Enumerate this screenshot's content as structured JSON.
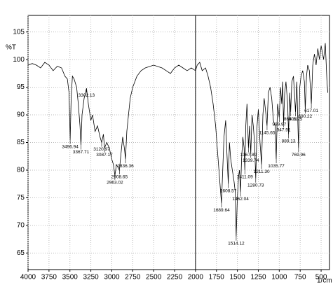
{
  "chart_data": {
    "type": "line",
    "y_label": "%T",
    "x_label": "1/cm",
    "xlim": [
      4000,
      400
    ],
    "ylim": [
      62,
      108
    ],
    "xticks": [
      4000,
      3750,
      3500,
      3250,
      3000,
      2750,
      2500,
      2250,
      2000,
      1750,
      1500,
      1250,
      1000,
      750,
      500
    ],
    "yticks": [
      65,
      70,
      75,
      80,
      85,
      90,
      95,
      100,
      105
    ],
    "grid": true,
    "series": [
      {
        "color": "#000000",
        "x": [
          4000,
          3950,
          3900,
          3850,
          3800,
          3750,
          3700,
          3650,
          3600,
          3560,
          3530,
          3510,
          3497,
          3485,
          3470,
          3450,
          3420,
          3400,
          3380,
          3368,
          3355,
          3330,
          3302,
          3280,
          3250,
          3230,
          3200,
          3170,
          3140,
          3121,
          3100,
          3087,
          3060,
          3030,
          3000,
          2980,
          2963,
          2945,
          2925,
          2909,
          2890,
          2870,
          2850,
          2836,
          2820,
          2800,
          2780,
          2750,
          2700,
          2650,
          2600,
          2500,
          2400,
          2350,
          2300,
          2250,
          2200,
          2150,
          2100,
          2050,
          2000,
          1980,
          1950,
          1920,
          1880,
          1850,
          1820,
          1790,
          1760,
          1740,
          1720,
          1700,
          1690,
          1675,
          1660,
          1640,
          1625,
          1609,
          1595,
          1580,
          1560,
          1540,
          1525,
          1514,
          1500,
          1485,
          1475,
          1462,
          1450,
          1435,
          1420,
          1411,
          1400,
          1385,
          1368,
          1355,
          1340,
          1325,
          1310,
          1295,
          1281,
          1265,
          1250,
          1230,
          1211,
          1195,
          1180,
          1165,
          1146,
          1130,
          1110,
          1090,
          1070,
          1050,
          1036,
          1020,
          1000,
          985,
          970,
          960,
          948,
          935,
          920,
          900,
          889,
          875,
          864,
          850,
          830,
          806,
          790,
          770,
          755,
          740,
          720,
          700,
          690,
          675,
          660,
          640,
          617,
          600,
          580,
          560,
          540,
          520,
          500,
          470,
          450,
          430,
          420
        ],
        "values": [
          99,
          99.3,
          99,
          98.5,
          99.5,
          99,
          98,
          98.8,
          98.5,
          97,
          96.5,
          94,
          85.5,
          93,
          97,
          96.5,
          95,
          92,
          88,
          84.5,
          90,
          93,
          94.8,
          92,
          89,
          90,
          87,
          88,
          86,
          85,
          86.5,
          84,
          85,
          84,
          82,
          81,
          79,
          81,
          80.5,
          80,
          83,
          86,
          84,
          82,
          87,
          90,
          93,
          95,
          97,
          98,
          98.5,
          99,
          98.5,
          98,
          97.5,
          98.5,
          99,
          98.5,
          98,
          98.5,
          98,
          99,
          99.5,
          98,
          98.5,
          97,
          95,
          92,
          88,
          84,
          80,
          76,
          74,
          80,
          86,
          89,
          83,
          77.5,
          85,
          82,
          80,
          78,
          76,
          68,
          75,
          79,
          80,
          76,
          82,
          86,
          84,
          80,
          88,
          92,
          84,
          88,
          83,
          90,
          88,
          85,
          78.5,
          88,
          91,
          85,
          81,
          90,
          93,
          91,
          88,
          94,
          95,
          93,
          89,
          88,
          82,
          92,
          89.5,
          95,
          92,
          96,
          88.5,
          94,
          96,
          92,
          86.5,
          94,
          90.5,
          96,
          97,
          90.5,
          96,
          84,
          95,
          97,
          98,
          96,
          91,
          97,
          99,
          98,
          92,
          99,
          101,
          99,
          102,
          100,
          102.5,
          100,
          103,
          96,
          94
        ]
      }
    ],
    "peaks": {
      "x": [
        3496.94,
        3367.71,
        3302.13,
        3120.97,
        3087.17,
        2963.02,
        2908.65,
        2836.36,
        1689.64,
        1608.57,
        1514.12,
        1462.04,
        1411.09,
        1367.89,
        1339.74,
        1280.73,
        1211.3,
        1145.65,
        1035.77,
        999.97,
        947.91,
        889.13,
        864.11,
        806.25,
        769.96,
        690.22,
        617.01
      ],
      "y": [
        85.5,
        84.5,
        94.8,
        85,
        84,
        79,
        80,
        82,
        74,
        77.5,
        68,
        76,
        80,
        84,
        83,
        78.5,
        81,
        88,
        82,
        89.5,
        88.5,
        86.5,
        90.5,
        90.5,
        84,
        91,
        92
      ],
      "x_labels": [
        "3496.94",
        "3367.71",
        "3302.13",
        "3120.97",
        "3087.17",
        "2963.02",
        "2908.65",
        "2836.36",
        "1689.64",
        "1608.57",
        "1514.12",
        "1462.04",
        "1411.09",
        "1367.89",
        "1339.74",
        "1280.73",
        "1211.30",
        "1145.65",
        "1035.77",
        "999.97",
        "947.91",
        "889.13",
        "864.11",
        "806.25",
        "769.96",
        "690.22",
        "617.01"
      ]
    }
  }
}
